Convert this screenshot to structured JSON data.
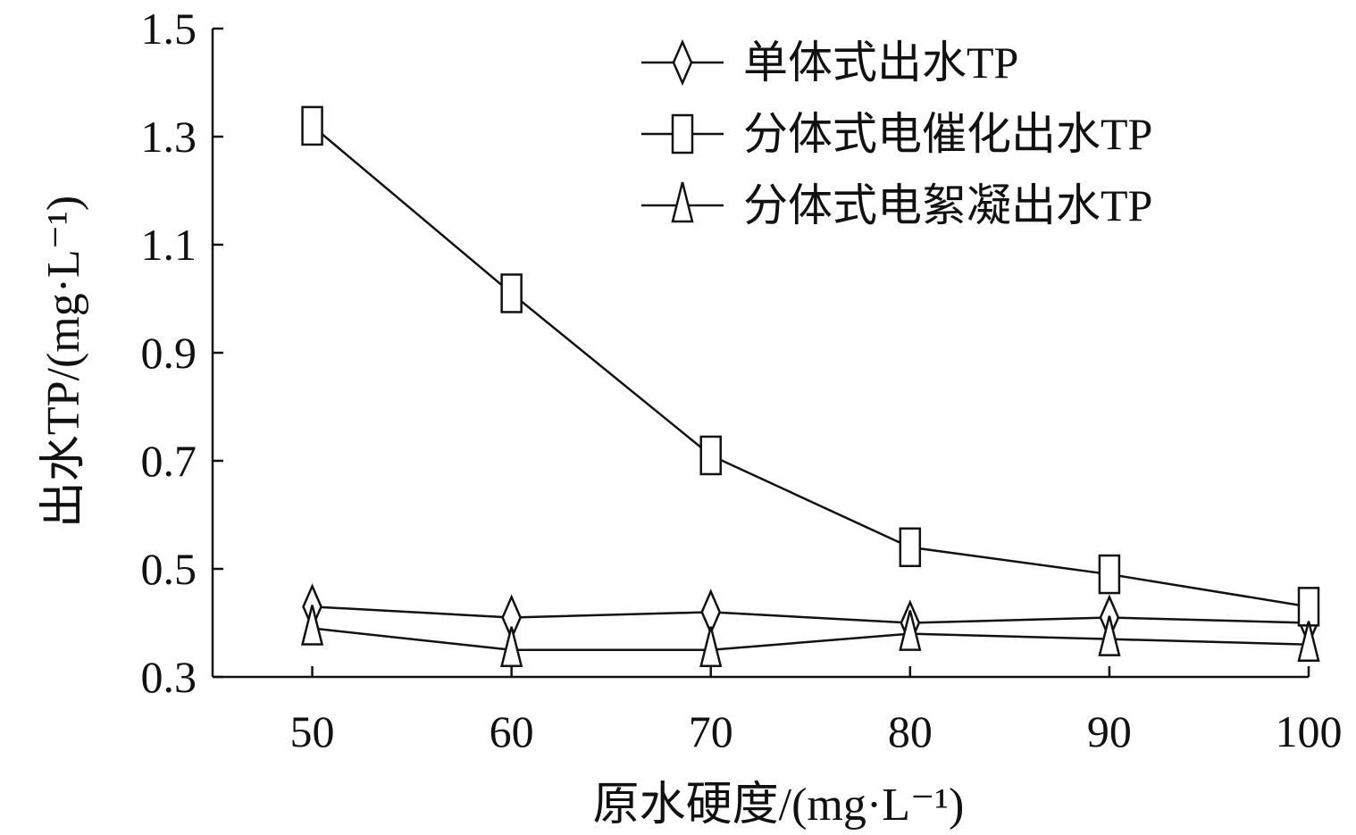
{
  "chart_data": {
    "type": "line",
    "title": "",
    "xlabel": "原水硬度/(mg·L⁻¹)",
    "ylabel": "出水TP/(mg·L⁻¹)",
    "x": [
      50,
      60,
      70,
      80,
      90,
      100
    ],
    "x_ticks": [
      "50",
      "60",
      "70",
      "80",
      "90",
      "100"
    ],
    "xlim": [
      45,
      100
    ],
    "ylim": [
      0.3,
      1.5
    ],
    "y_ticks": [
      "0.3",
      "0.5",
      "0.7",
      "0.9",
      "1.1",
      "1.3",
      "1.5"
    ],
    "grid": false,
    "legend_position": "top-right",
    "series": [
      {
        "name": "单体式出水TP",
        "marker": "diamond",
        "values": [
          0.43,
          0.41,
          0.42,
          0.4,
          0.41,
          0.4
        ]
      },
      {
        "name": "分体式电催化出水TP",
        "marker": "square",
        "values": [
          1.32,
          1.01,
          0.71,
          0.54,
          0.49,
          0.43
        ]
      },
      {
        "name": "分体式电絮凝出水TP",
        "marker": "triangle",
        "values": [
          0.39,
          0.35,
          0.35,
          0.38,
          0.37,
          0.36
        ]
      }
    ]
  }
}
